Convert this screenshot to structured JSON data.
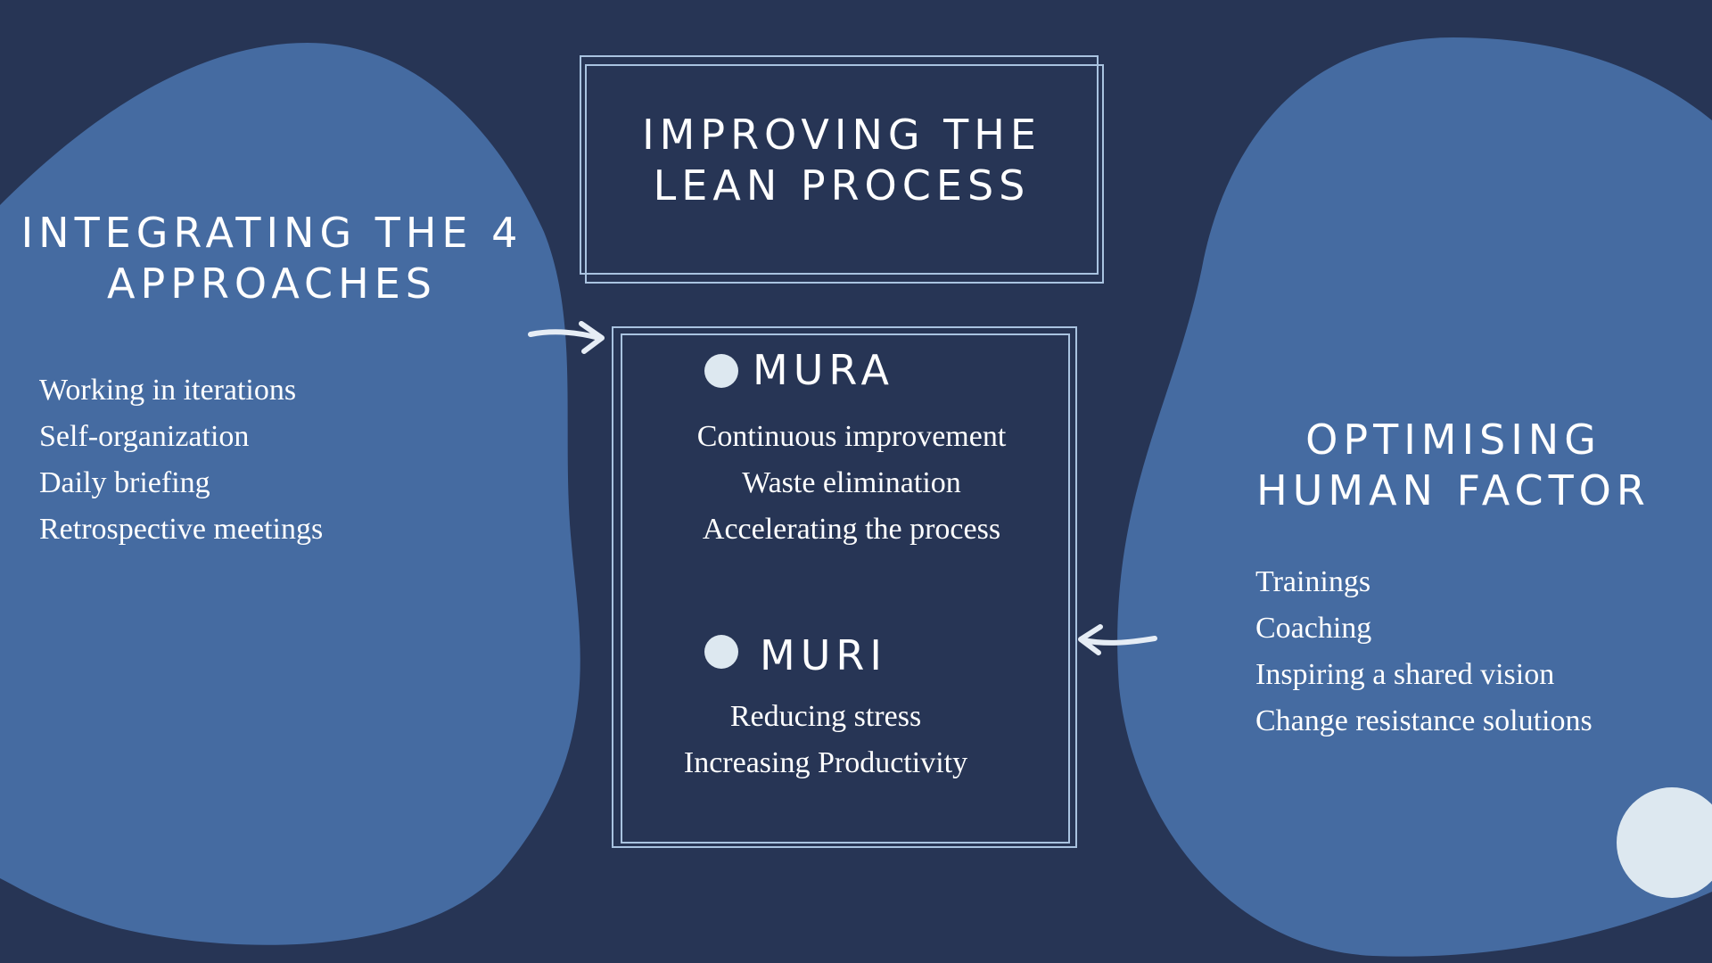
{
  "colors": {
    "background": "#273555",
    "blob": "#456ba1",
    "frame": "#a9c3e0",
    "accent": "#dde8f0"
  },
  "title": {
    "line1": "IMPROVING THE",
    "line2": "LEAN PROCESS"
  },
  "left": {
    "heading_line1": "INTEGRATING THE 4",
    "heading_line2": "APPROACHES",
    "items": [
      "Working in iterations",
      "Self-organization",
      "Daily briefing",
      "Retrospective meetings"
    ]
  },
  "right": {
    "heading_line1": "OPTIMISING",
    "heading_line2": "HUMAN FACTOR",
    "items": [
      "Trainings",
      "Coaching",
      "Inspiring a shared vision",
      "Change resistance solutions"
    ]
  },
  "mura": {
    "label": "MURA",
    "items": [
      "Continuous improvement",
      "Waste elimination",
      "Accelerating the process"
    ]
  },
  "muri": {
    "label": "MURI",
    "items": [
      "Reducing stress",
      "Increasing Productivity"
    ]
  },
  "icons": {
    "left_arrow": "arrow-right-icon",
    "right_arrow": "arrow-left-icon",
    "bullet": "circle-bullet-icon"
  }
}
